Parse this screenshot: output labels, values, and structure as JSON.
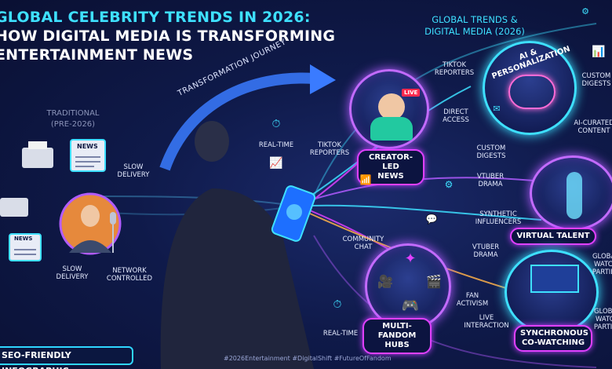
{
  "title": {
    "line1": "GLOBAL CELEBRITY TRENDS IN 2026:",
    "line2": "HOW DIGITAL MEDIA IS TRANSFORMING",
    "line3": "ENTERTAINMENT NEWS"
  },
  "right_title": {
    "line1": "GLOBAL TRENDS &",
    "line2": "DIGITAL MEDIA (2026)"
  },
  "journey_label": "TRANSFORMATION JOURNEY",
  "traditional": {
    "line1": "TRADITIONAL",
    "line2": "(PRE-2026)",
    "news_label": "NEWS",
    "labels": {
      "slow_delivery_top": "SLOW\nDELIVERY",
      "slow_delivery_bottom": "SLOW\nDELIVERY",
      "network_controlled": "NETWORK\nCONTROLLED"
    }
  },
  "center_labels": {
    "real_time_top": "REAL-TIME",
    "tiktok_reporters_center": "TIKTOK\nREPORTERS",
    "community_chat": "COMMUNITY\nCHAT",
    "real_time_bottom": "REAL-TIME"
  },
  "nodes": {
    "creator_led": {
      "label": "CREATOR-LED\nNEWS",
      "live_badge": "LIVE",
      "side_labels": [
        "TIKTOK\nREPORTERS",
        "DIRECT\nACCESS"
      ]
    },
    "ai_personalization": {
      "arc_label": "AI & PERSONALIZATION",
      "side_labels": [
        "CUSTOM\nDIGESTS",
        "AI-CURATED\nCONTENT"
      ]
    },
    "virtual_talent": {
      "label": "VIRTUAL TALENT",
      "side_labels": [
        "CUSTOM\nDIGESTS",
        "VTUBER\nDRAMA",
        "SYNTHETIC\nINFLUENCERS"
      ]
    },
    "multi_fandom": {
      "label": "MULTI-FANDOM\nHUBS",
      "side_labels": [
        "VTUBER\nDRAMA",
        "FAN\nACTIVISM",
        "LIVE\nINTERACTION"
      ]
    },
    "co_watching": {
      "label": "SYNCHRONOUS\nCO-WATCHING",
      "side_labels": [
        "GLOBAL\nWATCH\nPARTIES",
        "GLOBAL\nWATCH\nPARTIES"
      ]
    }
  },
  "badge": "SEO-FRIENDLY INFOGRAPHIC",
  "hashtags": "#2026Entertainment #DigitalShift #FutureOfFandom",
  "colors": {
    "accent_cyan": "#3ee0ff",
    "accent_purple": "#c36bff",
    "accent_magenta": "#e040ff",
    "background": "#0f1a4a"
  }
}
